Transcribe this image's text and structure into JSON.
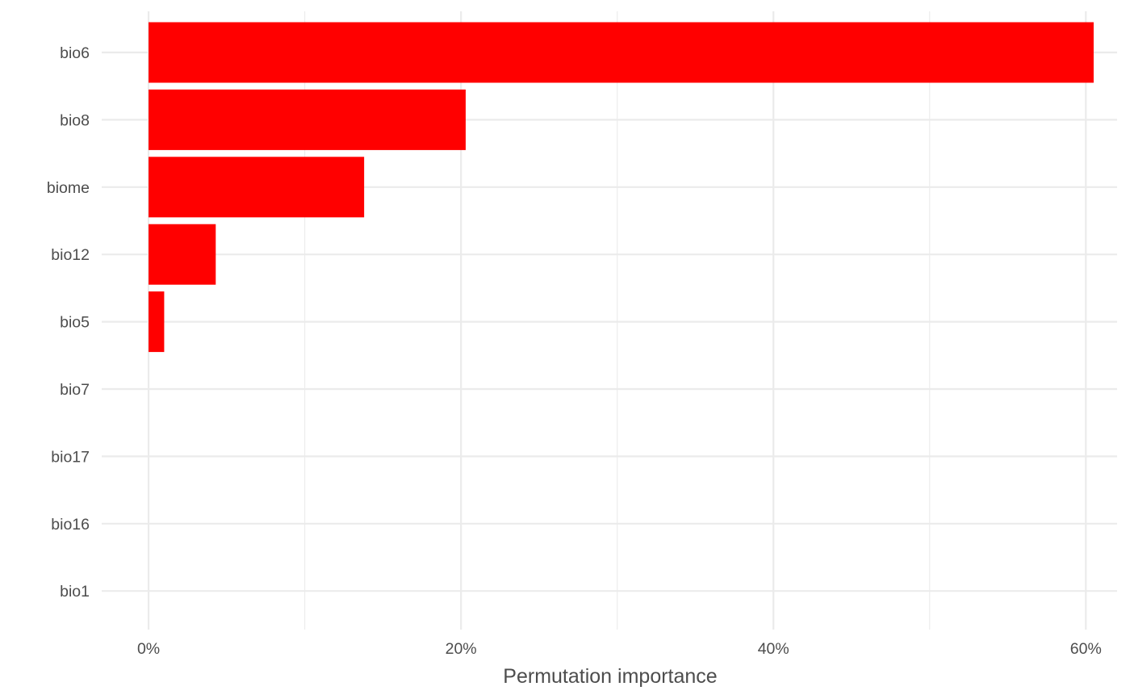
{
  "chart_data": {
    "type": "bar",
    "orientation": "horizontal",
    "categories": [
      "bio6",
      "bio8",
      "biome",
      "bio12",
      "bio5",
      "bio7",
      "bio17",
      "bio16",
      "bio1"
    ],
    "values": [
      60.5,
      20.3,
      13.8,
      4.3,
      1.0,
      0,
      0,
      0,
      0
    ],
    "title": "",
    "xlabel": "Permutation importance",
    "ylabel": "",
    "xlim": [
      -3,
      62
    ],
    "xticks": [
      0,
      20,
      40,
      60
    ],
    "xtick_labels": [
      "0%",
      "20%",
      "40%",
      "60%"
    ],
    "bar_color": "#FF0000",
    "grid": true,
    "legend": "none"
  }
}
